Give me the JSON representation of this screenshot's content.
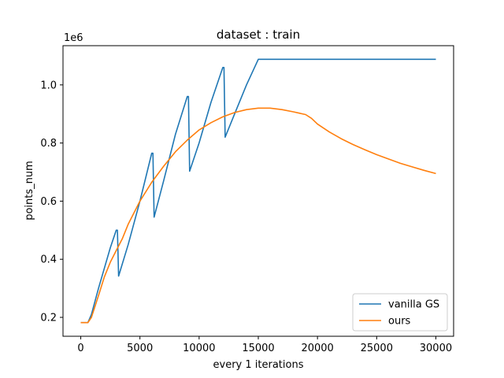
{
  "chart_data": {
    "type": "line",
    "title": "dataset : train",
    "xlabel": "every 1 iterations",
    "ylabel": "points_num",
    "y_offset_label": "1e6",
    "xlim": [
      -1500,
      31500
    ],
    "ylim": [
      0.135,
      1.135
    ],
    "x_ticks": [
      0,
      5000,
      10000,
      15000,
      20000,
      25000,
      30000
    ],
    "x_tick_labels": [
      "0",
      "5000",
      "10000",
      "15000",
      "20000",
      "25000",
      "30000"
    ],
    "y_ticks": [
      0.2,
      0.4,
      0.6,
      0.8,
      1.0
    ],
    "y_tick_labels": [
      "0.2",
      "0.4",
      "0.6",
      "0.8",
      "1.0"
    ],
    "legend_position": "bottom-right",
    "series": [
      {
        "name": "vanilla GS",
        "color": "#1f77b4",
        "x": [
          0,
          600,
          900,
          1500,
          2000,
          2500,
          3000,
          3100,
          3200,
          4000,
          5000,
          6000,
          6100,
          6200,
          7000,
          8000,
          9000,
          9100,
          9200,
          10000,
          11000,
          12000,
          12100,
          12200,
          13000,
          14000,
          15000,
          16000,
          20000,
          25000,
          30000
        ],
        "y": [
          0.182,
          0.182,
          0.21,
          0.3,
          0.37,
          0.44,
          0.5,
          0.5,
          0.342,
          0.45,
          0.6,
          0.765,
          0.765,
          0.545,
          0.67,
          0.83,
          0.96,
          0.96,
          0.703,
          0.8,
          0.94,
          1.06,
          1.06,
          0.82,
          0.9,
          1.0,
          1.088,
          1.088,
          1.088,
          1.088,
          1.088
        ]
      },
      {
        "name": "ours",
        "color": "#ff7f0e",
        "x": [
          0,
          600,
          900,
          1500,
          2000,
          2500,
          3000,
          3500,
          4000,
          5000,
          6000,
          7000,
          8000,
          9000,
          10000,
          11000,
          12000,
          13000,
          14000,
          15000,
          16000,
          17000,
          18000,
          19000,
          19500,
          20000,
          21000,
          22000,
          23000,
          24000,
          25000,
          26000,
          27000,
          28000,
          29000,
          30000
        ],
        "y": [
          0.182,
          0.182,
          0.2,
          0.275,
          0.34,
          0.39,
          0.43,
          0.47,
          0.52,
          0.6,
          0.665,
          0.72,
          0.77,
          0.81,
          0.845,
          0.87,
          0.89,
          0.905,
          0.915,
          0.92,
          0.92,
          0.915,
          0.907,
          0.898,
          0.885,
          0.865,
          0.838,
          0.815,
          0.795,
          0.777,
          0.76,
          0.745,
          0.73,
          0.718,
          0.706,
          0.695
        ]
      }
    ]
  }
}
